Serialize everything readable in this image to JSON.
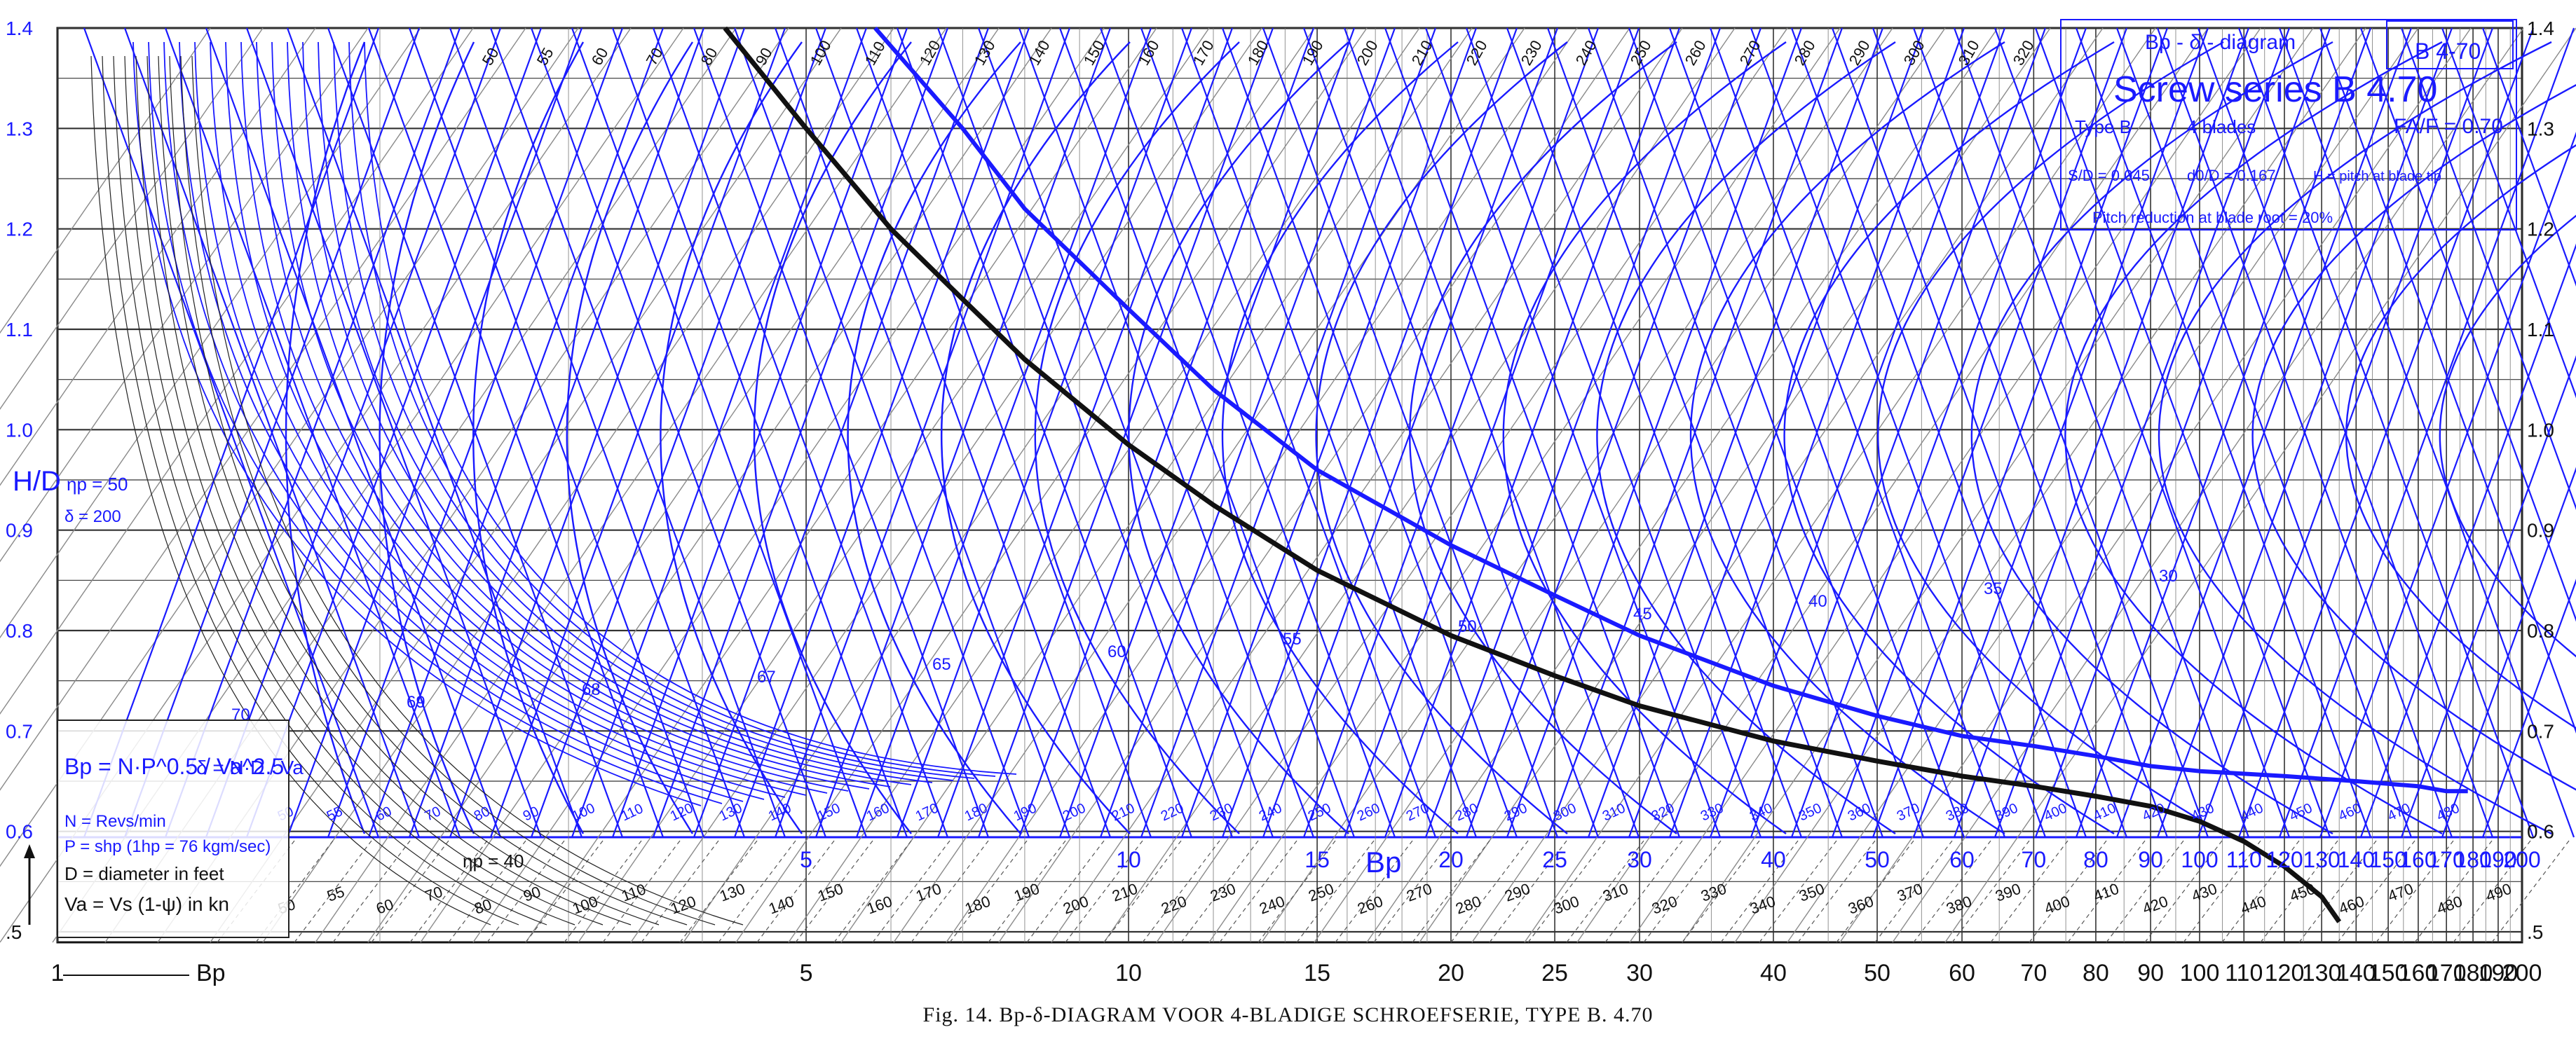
{
  "caption": "Fig. 14. Bp-δ-DIAGRAM VOOR 4-BLADIGE SCHROEFSERIE, TYPE B. 4.70",
  "colors": {
    "blue": "#1a1aff",
    "black": "#111111",
    "grid": "#333333",
    "grey": "#8a8a8a"
  },
  "info_box": {
    "heading": "Bp - δ - diagram",
    "id_label": "B 4-70",
    "series": "Screw series  B 4.70",
    "type": "Type B",
    "blades": "4 blades",
    "area_ratio": "FA/F = 0.70",
    "thickness": "S/D = 0.045",
    "hub": "d0/D = 0.167",
    "pitch_note": "H = pitch at blade tip",
    "reduction": "Pitch reduction at blade root = 20%"
  },
  "legend": {
    "bp_formula": "Bp = N·P^0.5 / Va^2.5",
    "delta_formula": "δ = N·D / Va",
    "n_def": "N = Revs/min",
    "p_def": "P = shp (1hp = 76 kgm/sec)",
    "d_def": "D = diameter in feet",
    "va_def": "Va = Vs (1-ψ) in kn",
    "bp_arrow": "Bp"
  },
  "chart_data": {
    "type": "line",
    "title": "",
    "xlabel": "Bp",
    "ylabel": "H/D",
    "x_scale": "log",
    "xlim": [
      1,
      200
    ],
    "ylim": [
      0.5,
      1.4
    ],
    "x_ticks_bottom": [
      1,
      5,
      10,
      15,
      20,
      25,
      30,
      40,
      50,
      60,
      70,
      80,
      90,
      100,
      110,
      120,
      130,
      140,
      150,
      160,
      170,
      180,
      190,
      200
    ],
    "x_ticks_upper": [
      5,
      10,
      15,
      20,
      25,
      30,
      40,
      50,
      60,
      70,
      80,
      90,
      100,
      110,
      120,
      130,
      140,
      150,
      160,
      170,
      180,
      190,
      200
    ],
    "y_ticks_left": [
      "1.4",
      "1.3",
      "1.2",
      "1.1",
      "1.0",
      "0.9",
      "0.8",
      "0.7",
      "0.6",
      ".5"
    ],
    "y_ticks_right": [
      "1.4",
      "1.3",
      "1.2",
      "1.1",
      "1.0",
      "0.9",
      "0.8",
      "0.7",
      "0.6",
      ".5"
    ],
    "delta_labels": [
      50,
      55,
      60,
      70,
      80,
      90,
      100,
      110,
      120,
      130,
      140,
      150,
      160,
      170,
      180,
      190,
      200,
      210,
      220,
      230,
      240,
      250,
      260,
      270,
      280,
      290,
      300,
      310,
      320,
      330,
      340,
      350,
      360,
      370,
      380,
      390,
      400,
      410,
      420,
      430,
      440,
      450,
      460,
      470,
      480,
      490
    ],
    "eta_labels": [
      30,
      35,
      40,
      45,
      50,
      55,
      60,
      65,
      67,
      68,
      69,
      70
    ],
    "eta_annotation": "ηp = 50",
    "eta_annotation_lower": "ηp = 40",
    "delta_annotation": "δ = 200",
    "series": [
      {
        "name": "",
        "color": "#111111",
        "points": [
          [
            4.2,
            1.4
          ],
          [
            5,
            1.3
          ],
          [
            6,
            1.2
          ],
          [
            7,
            1.13
          ],
          [
            8,
            1.07
          ],
          [
            10,
            0.985
          ],
          [
            12,
            0.925
          ],
          [
            15,
            0.86
          ],
          [
            20,
            0.795
          ],
          [
            25,
            0.755
          ],
          [
            30,
            0.725
          ],
          [
            40,
            0.69
          ],
          [
            50,
            0.67
          ],
          [
            60,
            0.655
          ],
          [
            70,
            0.645
          ],
          [
            80,
            0.635
          ],
          [
            90,
            0.625
          ],
          [
            100,
            0.61
          ],
          [
            110,
            0.59
          ],
          [
            120,
            0.565
          ],
          [
            130,
            0.535
          ],
          [
            135,
            0.51
          ]
        ]
      },
      {
        "name": "",
        "color": "#1a1aff",
        "points": [
          [
            5.8,
            1.4
          ],
          [
            7,
            1.3
          ],
          [
            8,
            1.22
          ],
          [
            10,
            1.12
          ],
          [
            12,
            1.04
          ],
          [
            15,
            0.96
          ],
          [
            20,
            0.885
          ],
          [
            25,
            0.835
          ],
          [
            30,
            0.795
          ],
          [
            40,
            0.745
          ],
          [
            50,
            0.715
          ],
          [
            60,
            0.695
          ],
          [
            70,
            0.685
          ],
          [
            80,
            0.675
          ],
          [
            90,
            0.665
          ],
          [
            100,
            0.66
          ],
          [
            120,
            0.655
          ],
          [
            140,
            0.65
          ],
          [
            160,
            0.645
          ],
          [
            170,
            0.64
          ],
          [
            178,
            0.64
          ]
        ]
      }
    ]
  }
}
